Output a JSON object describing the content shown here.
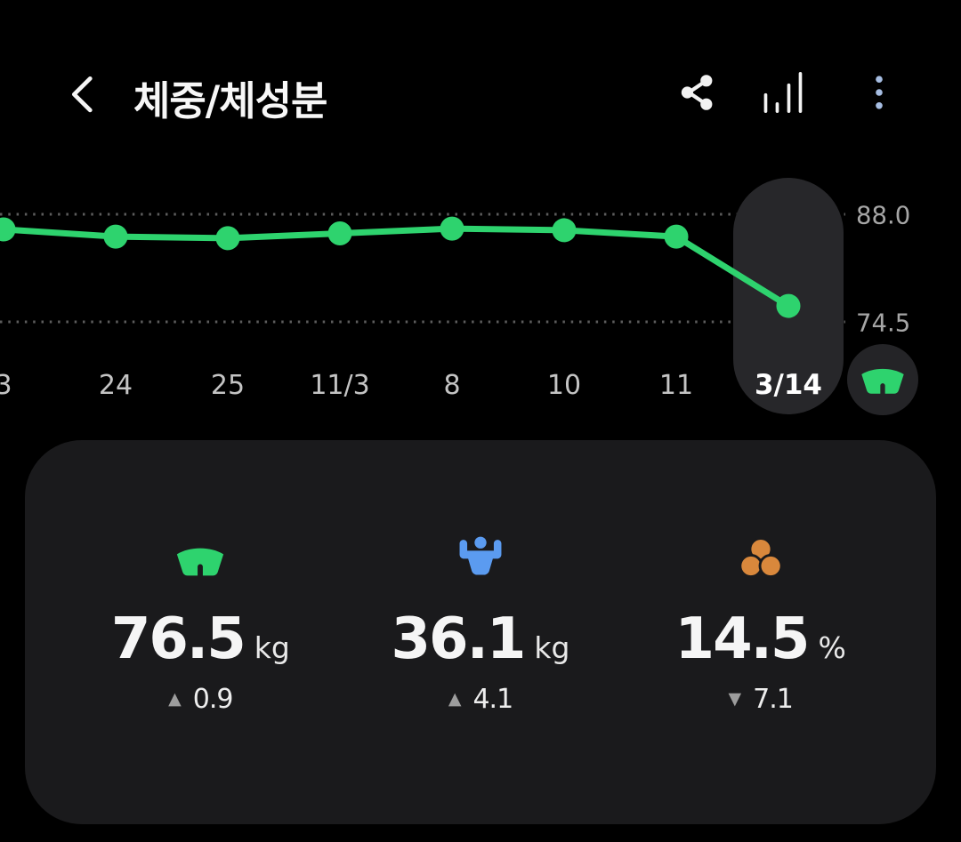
{
  "header": {
    "title": "체중/체성분",
    "icons": [
      "back-chevron-icon",
      "share-icon",
      "bar-chart-icon",
      "more-vertical-icon"
    ]
  },
  "chart_data": {
    "type": "line",
    "x": [
      "3",
      "24",
      "25",
      "11/3",
      "8",
      "10",
      "11",
      "3/14"
    ],
    "series": [
      {
        "name": "weight",
        "values": [
          86.1,
          85.2,
          85.0,
          85.6,
          86.2,
          86.0,
          85.2,
          76.5
        ]
      }
    ],
    "selected_index": 7,
    "selected_label": "3/14",
    "ylim": [
      74.5,
      88.0
    ],
    "y_gridlines": [
      88.0,
      74.5
    ],
    "y_tick_labels": [
      "88.0",
      "74.5"
    ],
    "grid": "dotted-horizontal",
    "legend": "none",
    "line_color": "#2ed36e"
  },
  "chart_fab": {
    "icon": "weight-scale-icon",
    "color": "#2ed36e"
  },
  "stats": [
    {
      "icon": "weight-scale-icon",
      "color": "#2ed36e",
      "value": "76.5",
      "unit": "kg",
      "delta": "0.9",
      "delta_symbol": "▲",
      "delta_direction": "up"
    },
    {
      "icon": "skeletal-muscle-icon",
      "color": "#5b9bf0",
      "value": "36.1",
      "unit": "kg",
      "delta": "4.1",
      "delta_symbol": "▲",
      "delta_direction": "up"
    },
    {
      "icon": "body-fat-icon",
      "color": "#d9883c",
      "value": "14.5",
      "unit": "%",
      "delta": "7.1",
      "delta_symbol": "▼",
      "delta_direction": "down"
    }
  ],
  "colors": {
    "background": "#000000",
    "card": "#1a1a1c",
    "pill": "#27272a",
    "fab_bg": "#242427",
    "green": "#2ed36e",
    "blue": "#5b9bf0",
    "orange": "#d9883c",
    "axis_label": "#c4c4c4",
    "y_label": "#a6a6a6",
    "grid_dot": "#5c5c5c",
    "more_icon": "#a6bde2",
    "icon_white": "#f2f2f2"
  }
}
